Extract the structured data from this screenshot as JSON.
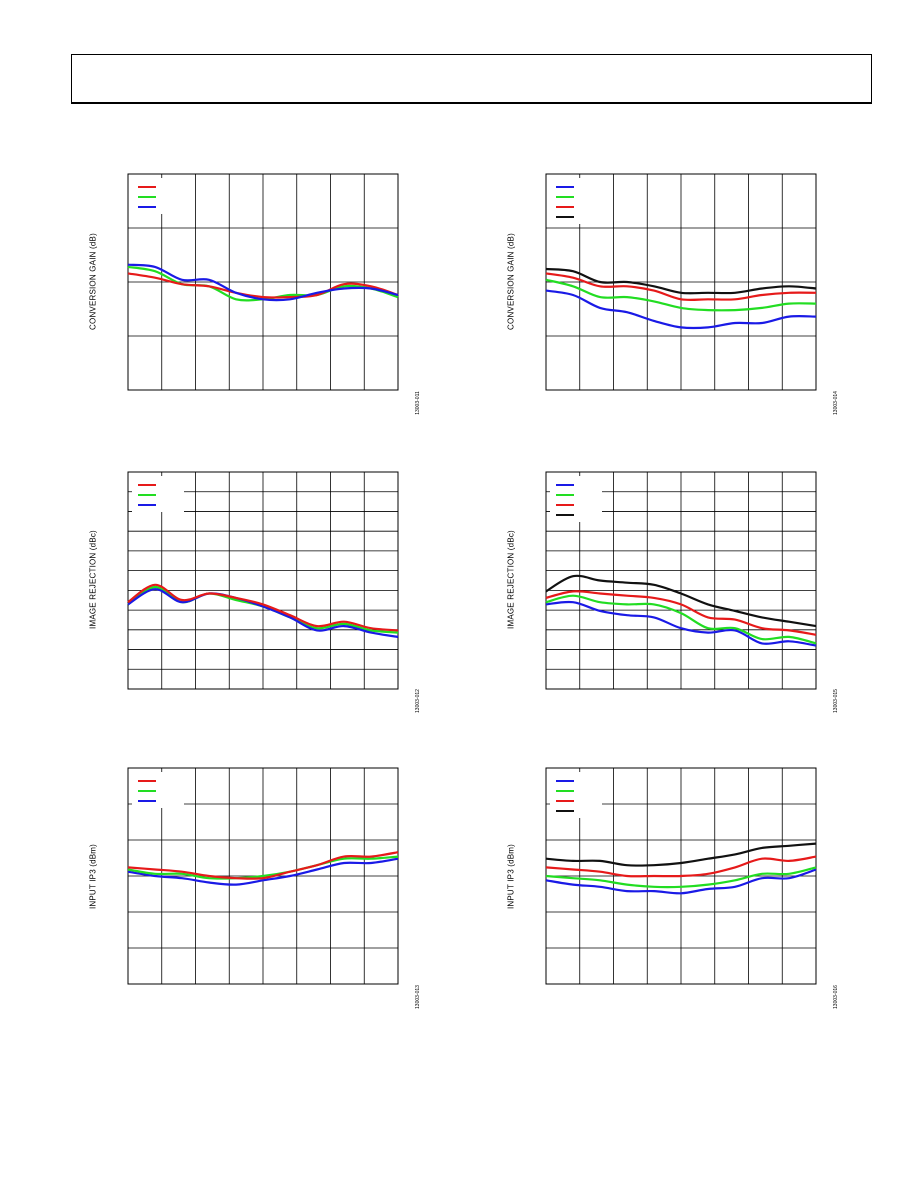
{
  "colors": {
    "blue": "#1a1ae6",
    "green": "#22dd22",
    "red": "#e61a1a",
    "black": "#111111"
  },
  "charts": [
    {
      "ylabel": "CONVERSION GAIN (dB)",
      "figid": "13003-011",
      "hgrid": 4,
      "legend": [
        "red",
        "green",
        "blue"
      ],
      "series": [
        {
          "color": "green",
          "values": [
            0.43,
            0.45,
            0.51,
            0.52,
            0.58,
            0.58,
            0.56,
            0.56,
            0.52,
            0.53,
            0.57
          ]
        },
        {
          "color": "red",
          "values": [
            0.46,
            0.48,
            0.51,
            0.52,
            0.55,
            0.57,
            0.57,
            0.56,
            0.51,
            0.52,
            0.56
          ]
        },
        {
          "color": "blue",
          "values": [
            0.42,
            0.43,
            0.49,
            0.49,
            0.55,
            0.58,
            0.58,
            0.55,
            0.53,
            0.53,
            0.56
          ]
        }
      ]
    },
    {
      "ylabel": "CONVERSION GAIN (dB)",
      "figid": "13003-014",
      "hgrid": 4,
      "legend": [
        "blue",
        "green",
        "red",
        "black"
      ],
      "series": [
        {
          "color": "blue",
          "values": [
            0.54,
            0.56,
            0.62,
            0.64,
            0.68,
            0.71,
            0.71,
            0.69,
            0.69,
            0.66,
            0.66
          ]
        },
        {
          "color": "green",
          "values": [
            0.49,
            0.52,
            0.57,
            0.57,
            0.59,
            0.62,
            0.63,
            0.63,
            0.62,
            0.6,
            0.6
          ]
        },
        {
          "color": "red",
          "values": [
            0.46,
            0.48,
            0.52,
            0.52,
            0.54,
            0.58,
            0.58,
            0.58,
            0.56,
            0.55,
            0.55
          ]
        },
        {
          "color": "black",
          "values": [
            0.44,
            0.45,
            0.5,
            0.5,
            0.52,
            0.55,
            0.55,
            0.55,
            0.53,
            0.52,
            0.53
          ]
        }
      ]
    },
    {
      "ylabel": "IMAGE REJECTION (dBc)",
      "figid": "13003-012",
      "hgrid": 11,
      "legend": [
        "red",
        "green",
        "blue"
      ],
      "series": [
        {
          "color": "green",
          "values": [
            0.61,
            0.53,
            0.6,
            0.56,
            0.59,
            0.62,
            0.67,
            0.72,
            0.7,
            0.73,
            0.74
          ]
        },
        {
          "color": "blue",
          "values": [
            0.61,
            0.54,
            0.6,
            0.56,
            0.58,
            0.62,
            0.67,
            0.73,
            0.71,
            0.74,
            0.76
          ]
        },
        {
          "color": "red",
          "values": [
            0.6,
            0.52,
            0.59,
            0.56,
            0.58,
            0.61,
            0.66,
            0.71,
            0.69,
            0.72,
            0.73
          ]
        }
      ]
    },
    {
      "ylabel": "IMAGE REJECTION (dBc)",
      "figid": "13003-015",
      "hgrid": 11,
      "legend": [
        "blue",
        "green",
        "red",
        "black"
      ],
      "series": [
        {
          "color": "blue",
          "values": [
            0.61,
            0.6,
            0.64,
            0.66,
            0.67,
            0.72,
            0.74,
            0.73,
            0.79,
            0.78,
            0.8
          ]
        },
        {
          "color": "green",
          "values": [
            0.6,
            0.57,
            0.6,
            0.61,
            0.61,
            0.65,
            0.72,
            0.72,
            0.77,
            0.76,
            0.79
          ]
        },
        {
          "color": "red",
          "values": [
            0.58,
            0.55,
            0.56,
            0.57,
            0.58,
            0.61,
            0.67,
            0.68,
            0.72,
            0.73,
            0.75
          ]
        },
        {
          "color": "black",
          "values": [
            0.55,
            0.48,
            0.5,
            0.51,
            0.52,
            0.56,
            0.61,
            0.64,
            0.67,
            0.69,
            0.71
          ]
        }
      ]
    },
    {
      "ylabel": "INPUT IP3 (dBm)",
      "figid": "13003-013",
      "hgrid": 6,
      "legend": [
        "red",
        "green",
        "blue"
      ],
      "series": [
        {
          "color": "blue",
          "values": [
            0.48,
            0.5,
            0.51,
            0.53,
            0.54,
            0.52,
            0.5,
            0.47,
            0.44,
            0.44,
            0.42
          ]
        },
        {
          "color": "green",
          "values": [
            0.47,
            0.49,
            0.49,
            0.51,
            0.51,
            0.5,
            0.48,
            0.45,
            0.42,
            0.42,
            0.41
          ]
        },
        {
          "color": "red",
          "values": [
            0.46,
            0.47,
            0.48,
            0.5,
            0.51,
            0.51,
            0.48,
            0.45,
            0.41,
            0.41,
            0.39
          ]
        }
      ]
    },
    {
      "ylabel": "INPUT IP3 (dBm)",
      "figid": "13003-016",
      "hgrid": 6,
      "legend": [
        "blue",
        "green",
        "red",
        "black"
      ],
      "series": [
        {
          "color": "blue",
          "values": [
            0.52,
            0.54,
            0.55,
            0.57,
            0.57,
            0.58,
            0.56,
            0.55,
            0.51,
            0.51,
            0.47
          ]
        },
        {
          "color": "green",
          "values": [
            0.5,
            0.51,
            0.52,
            0.54,
            0.55,
            0.55,
            0.54,
            0.52,
            0.49,
            0.49,
            0.46
          ]
        },
        {
          "color": "red",
          "values": [
            0.46,
            0.47,
            0.48,
            0.5,
            0.5,
            0.5,
            0.49,
            0.46,
            0.42,
            0.43,
            0.41
          ]
        },
        {
          "color": "black",
          "values": [
            0.42,
            0.43,
            0.43,
            0.45,
            0.45,
            0.44,
            0.42,
            0.4,
            0.37,
            0.36,
            0.35
          ]
        }
      ]
    }
  ]
}
